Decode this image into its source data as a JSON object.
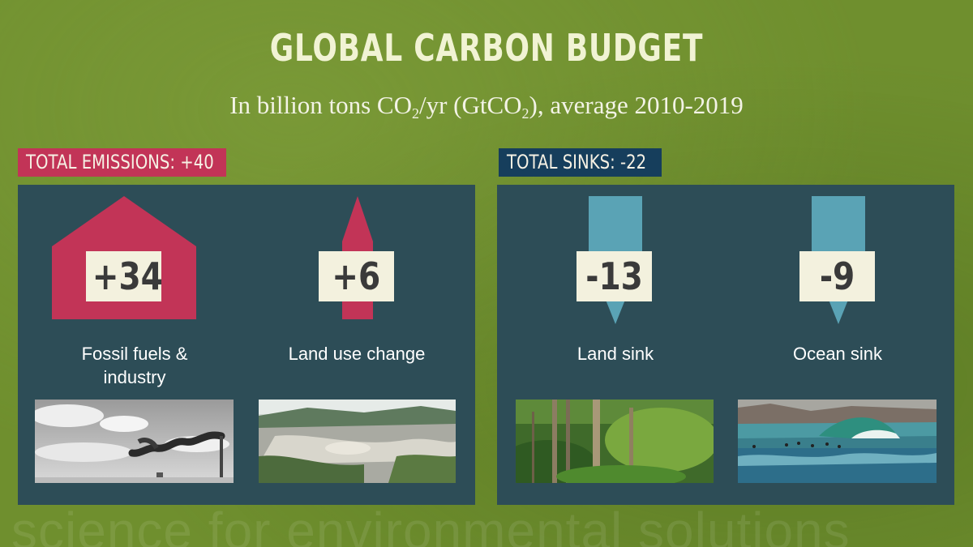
{
  "title": "GLOBAL CARBON BUDGET",
  "subtitle": {
    "part1": "In billion tons CO",
    "sub1": "2",
    "part2": "/yr (GtCO",
    "sub2": "2",
    "part3": "), average 2010-2019"
  },
  "emissions": {
    "tag": "TOTAL EMISSIONS: +40",
    "items": [
      {
        "value": "+34",
        "label_line1": "Fossil fuels &",
        "label_line2": "industry",
        "shape_icon": "house-icon",
        "photo_icon": "smokestack-photo"
      },
      {
        "value": "+6",
        "label_line1": "Land use change",
        "label_line2": "",
        "shape_icon": "up-arrow-icon",
        "photo_icon": "mining-landscape-photo"
      }
    ]
  },
  "sinks": {
    "tag": "TOTAL SINKS: -22",
    "items": [
      {
        "value": "-13",
        "label_line1": "Land sink",
        "label_line2": "",
        "shape_icon": "down-arrow-icon",
        "photo_icon": "forest-photo"
      },
      {
        "value": "-9",
        "label_line1": "Ocean sink",
        "label_line2": "",
        "shape_icon": "down-arrow-icon",
        "photo_icon": "ocean-wave-photo"
      }
    ]
  },
  "watermark": "science for environmental solutions",
  "colors": {
    "background": "#6f8f2e",
    "emissions": "#c23457",
    "sinks_tag": "#163e5c",
    "panel": "#2d4d57",
    "sink_arrow": "#5aa3b5",
    "value_box": "#f3f1de"
  }
}
